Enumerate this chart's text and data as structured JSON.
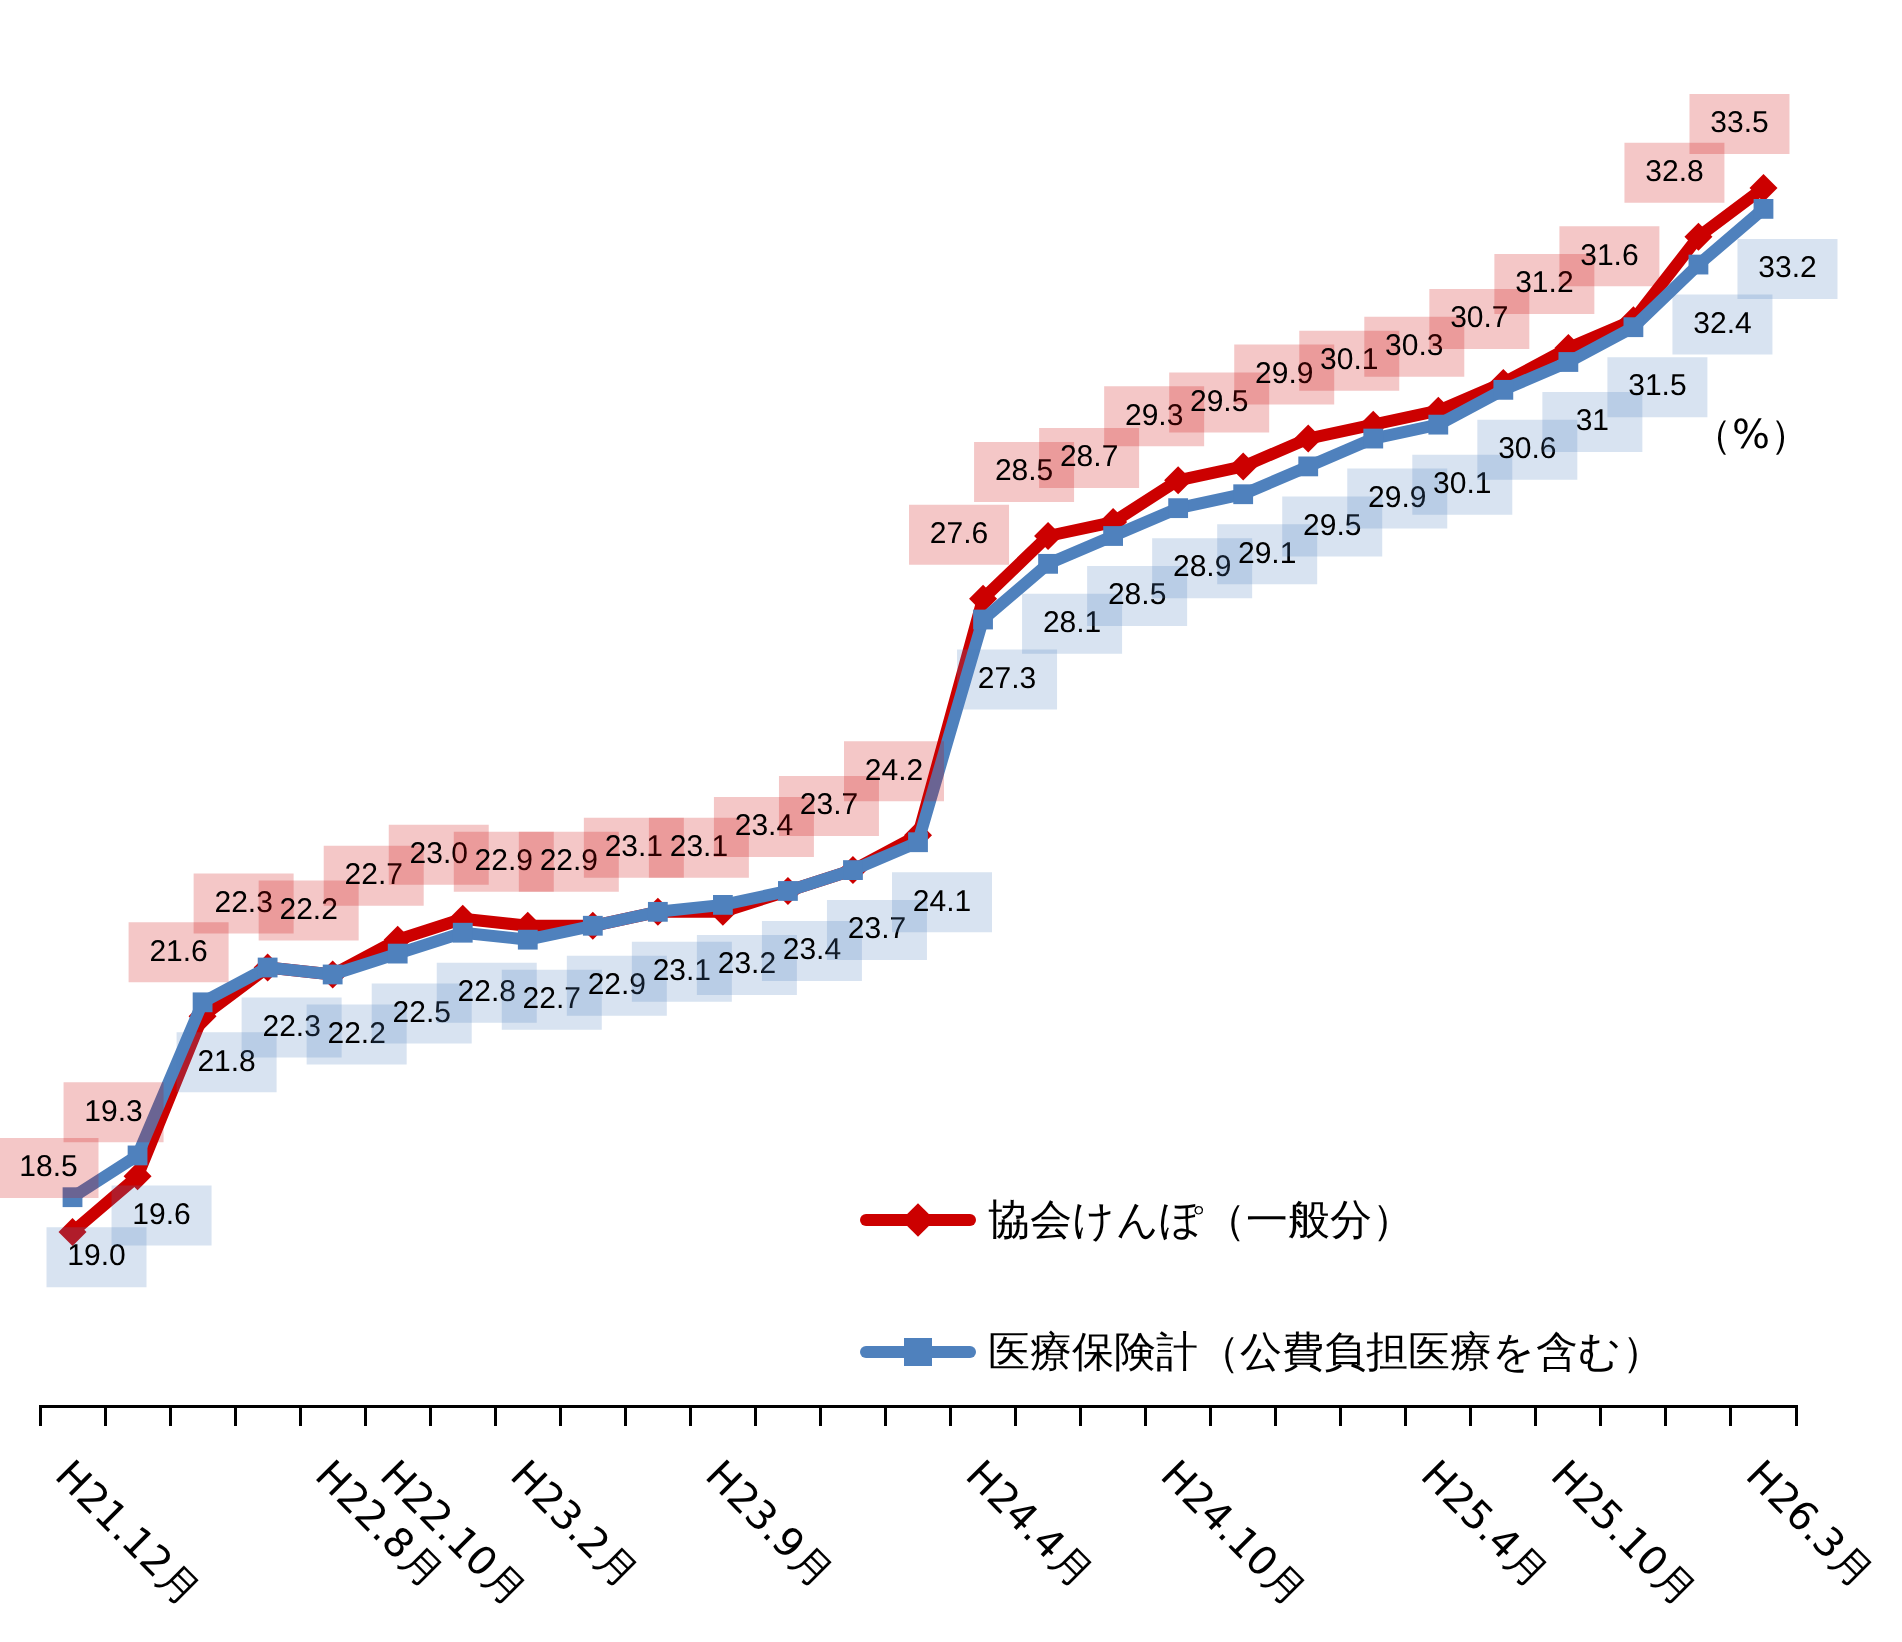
{
  "chart_data": {
    "type": "line",
    "categories": [
      "H21.12月",
      null,
      null,
      null,
      "H22.8月",
      "H22.10月",
      null,
      "H23.2月",
      null,
      null,
      "H23.9月",
      null,
      null,
      null,
      "H24.4月",
      null,
      null,
      "H24.10月",
      null,
      null,
      null,
      "H25.4月",
      null,
      "H25.10月",
      null,
      null,
      "H26.3月"
    ],
    "series": [
      {
        "name": "協会けんぽ（一般分）",
        "color": "#cc0000",
        "marker": "diamond",
        "values": [
          18.5,
          19.3,
          21.6,
          22.3,
          22.2,
          22.7,
          23.0,
          22.9,
          22.9,
          23.1,
          23.1,
          23.4,
          23.7,
          24.2,
          27.6,
          28.5,
          28.7,
          29.3,
          29.5,
          29.9,
          30.1,
          30.3,
          30.7,
          31.2,
          31.6,
          32.8,
          33.5
        ],
        "value_labels": [
          "18.5",
          "19.3",
          "21.6",
          "22.3",
          "22.2",
          "22.7",
          "23.0",
          "22.9",
          "22.9",
          "23.1",
          "23.1",
          "23.4",
          "23.7",
          "24.2",
          "27.6",
          "28.5",
          "28.7",
          "29.3",
          "29.5",
          "29.9",
          "30.1",
          "30.3",
          "30.7",
          "31.2",
          "31.6",
          "32.8",
          "33.5"
        ]
      },
      {
        "name": "医療保険計（公費負担医療を含む）",
        "color": "#4f81bd",
        "marker": "square",
        "values": [
          19.0,
          19.6,
          21.8,
          22.3,
          22.2,
          22.5,
          22.8,
          22.7,
          22.9,
          23.1,
          23.2,
          23.4,
          23.7,
          24.1,
          27.3,
          28.1,
          28.5,
          28.9,
          29.1,
          29.5,
          29.9,
          30.1,
          30.6,
          31,
          31.5,
          32.4,
          33.2
        ],
        "value_labels": [
          "19.0",
          "19.6",
          "21.8",
          "22.3",
          "22.2",
          "22.5",
          "22.8",
          "22.7",
          "22.9",
          "23.1",
          "23.2",
          "23.4",
          "23.7",
          "24.1",
          "27.3",
          "28.1",
          "28.5",
          "28.9",
          "29.1",
          "29.5",
          "29.9",
          "30.1",
          "30.6",
          "31",
          "31.5",
          "32.4",
          "33.2"
        ]
      }
    ],
    "tick_labels": "x",
    "grid": false,
    "legend": "bottom right",
    "line_style": "solid",
    "annotations": [
      "（%）"
    ]
  }
}
